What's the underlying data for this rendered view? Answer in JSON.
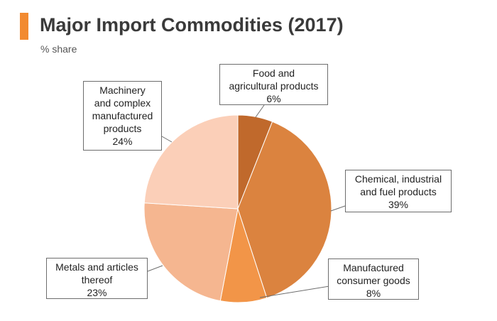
{
  "header": {
    "title": "Major Import Commodities (2017)",
    "subtitle": "% share",
    "accent_color": "#f28a30"
  },
  "chart_data": {
    "type": "pie",
    "title": "Major Import Commodities (2017)",
    "subtitle": "% share",
    "slices": [
      {
        "label": "Food and\nagricultural products",
        "value": 6,
        "display": "6%",
        "color": "#c0692c"
      },
      {
        "label": "Chemical, industrial\nand fuel products",
        "value": 39,
        "display": "39%",
        "color": "#db833f"
      },
      {
        "label": "Manufactured\nconsumer goods",
        "value": 8,
        "display": "8%",
        "color": "#f29548"
      },
      {
        "label": "Metals and articles\nthereof",
        "value": 23,
        "display": "23%",
        "color": "#f5b690"
      },
      {
        "label": "Machinery\nand complex\nmanufactured\nproducts",
        "value": 24,
        "display": "24%",
        "color": "#fbcfb8"
      }
    ],
    "start_angle": "12 o'clock",
    "direction": "clockwise",
    "legend": "callout labels"
  }
}
